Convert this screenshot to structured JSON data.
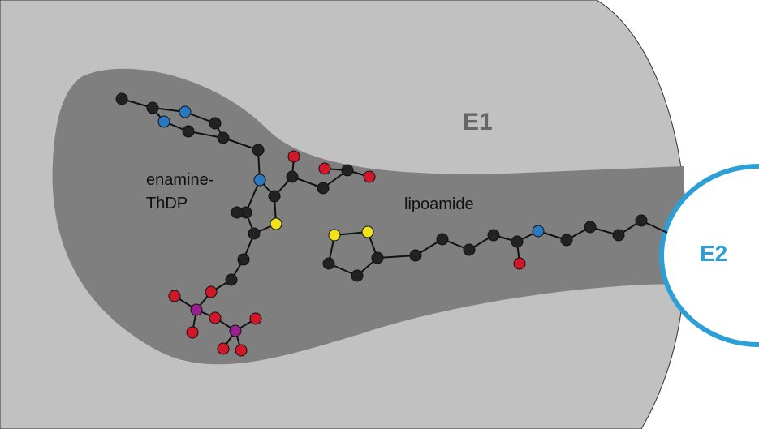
{
  "labels": {
    "e1": "E1",
    "e2": "E2",
    "enamine_thdp": {
      "line1": "enamine-",
      "line2": "ThDP"
    },
    "lipoamide": "lipoamide"
  }
}
